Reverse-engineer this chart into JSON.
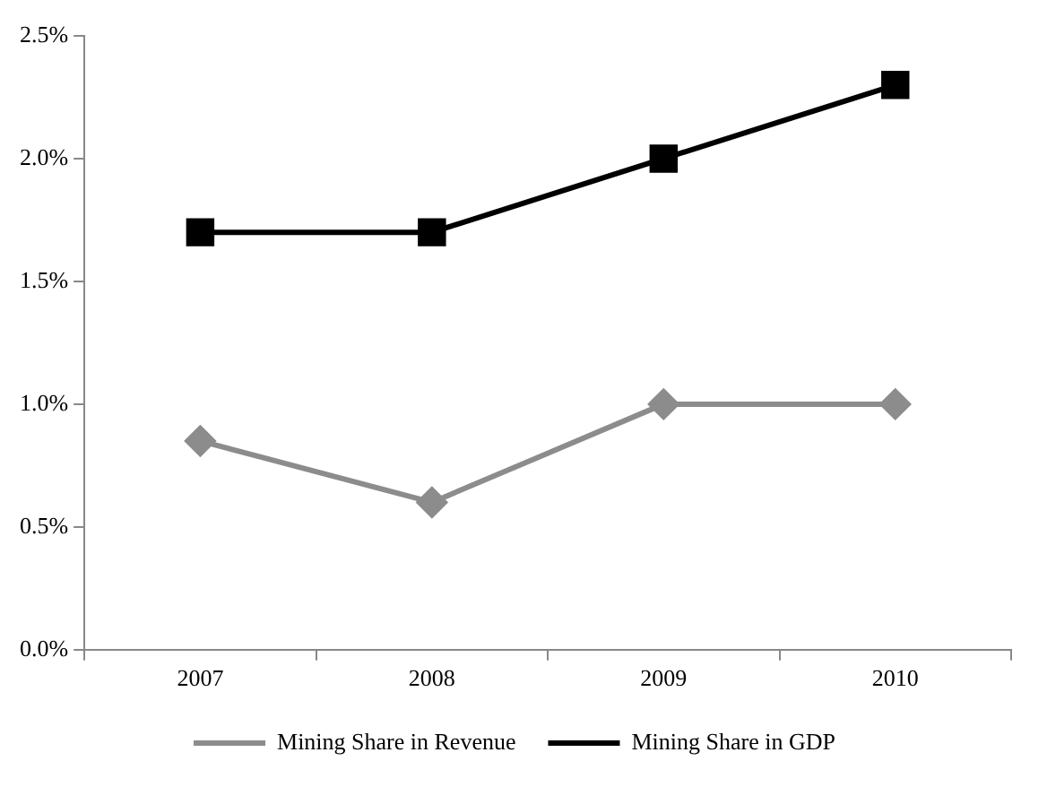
{
  "chart_data": {
    "type": "line",
    "categories": [
      "2007",
      "2008",
      "2009",
      "2010"
    ],
    "series": [
      {
        "name": "Mining Share in Revenue",
        "color": "#8c8c8c",
        "marker": "diamond",
        "values": [
          0.85,
          0.6,
          1.0,
          1.0
        ]
      },
      {
        "name": "Mining Share in GDP",
        "color": "#000000",
        "marker": "square",
        "values": [
          1.7,
          1.7,
          2.0,
          2.3
        ]
      }
    ],
    "ylim": [
      0,
      2.5
    ],
    "yticks": [
      {
        "value": 0,
        "label": "0.0%"
      },
      {
        "value": 0.5,
        "label": "0.5%"
      },
      {
        "value": 1,
        "label": "1.0%"
      },
      {
        "value": 1.5,
        "label": "1.5%"
      },
      {
        "value": 2,
        "label": "2.0%"
      },
      {
        "value": 2.5,
        "label": "2.5%"
      }
    ],
    "grid": false,
    "legend": "bottom"
  }
}
